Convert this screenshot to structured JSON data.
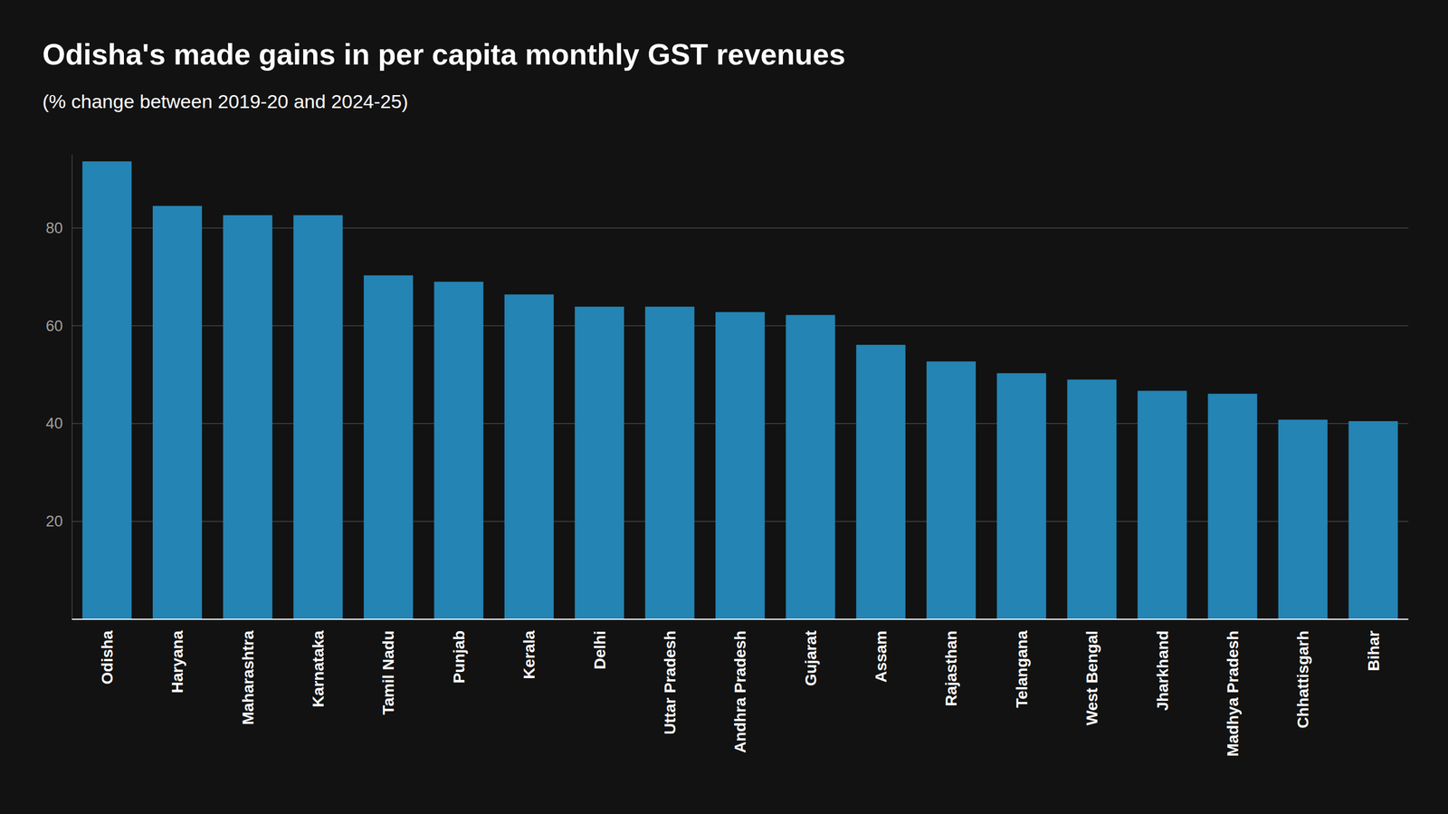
{
  "chart_data": {
    "type": "bar",
    "title": "Odisha's made gains in per capita monthly GST revenues",
    "subtitle": "(% change between 2019-20 and 2024-25)",
    "categories": [
      "Odisha",
      "Haryana",
      "Maharashtra",
      "Karnataka",
      "Tamil Nadu",
      "Punjab",
      "Kerala",
      "Delhi",
      "Uttar Pradesh",
      "Andhra Pradesh",
      "Gujarat",
      "Assam",
      "Rajasthan",
      "Telangana",
      "West Bengal",
      "Jharkhand",
      "Madhya Pradesh",
      "Chhattisgarh",
      "Bihar"
    ],
    "values": [
      93.6,
      84.5,
      82.6,
      82.6,
      70.3,
      69.0,
      66.4,
      63.9,
      63.9,
      62.8,
      62.2,
      56.1,
      52.7,
      50.3,
      49.0,
      46.7,
      46.1,
      40.8,
      40.5
    ],
    "color": "#2484b4",
    "ylim": [
      0,
      95
    ],
    "yticks": [
      20,
      40,
      60,
      80
    ],
    "grid": true
  }
}
